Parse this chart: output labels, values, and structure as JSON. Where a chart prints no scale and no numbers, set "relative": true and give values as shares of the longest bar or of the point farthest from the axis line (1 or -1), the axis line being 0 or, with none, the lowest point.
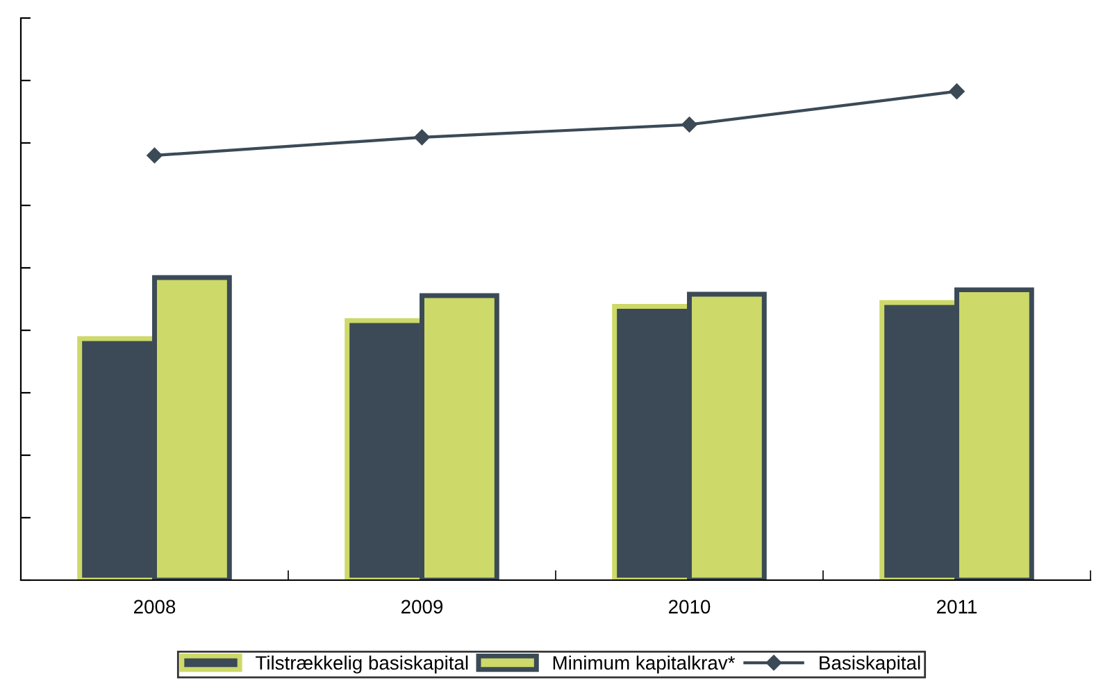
{
  "chart_data": {
    "type": "bar",
    "relative": true,
    "categories": [
      "2008",
      "2009",
      "2010",
      "2011"
    ],
    "series": [
      {
        "name": "Tilstrækkelig basiskapital",
        "color": "#3b4a56",
        "values": [
          0.494,
          0.531,
          0.56,
          0.568
        ]
      },
      {
        "name": "Minimum kapitalkrav*",
        "color": "#cdd968",
        "values": [
          0.619,
          0.582,
          0.585,
          0.594
        ]
      },
      {
        "name": "Basiskapital",
        "type": "line",
        "color": "#3b4a56",
        "marker": "diamond",
        "values": [
          0.869,
          0.906,
          0.932,
          1
        ]
      }
    ],
    "legend": "bottom",
    "grid": false,
    "tick_labels": "x"
  }
}
